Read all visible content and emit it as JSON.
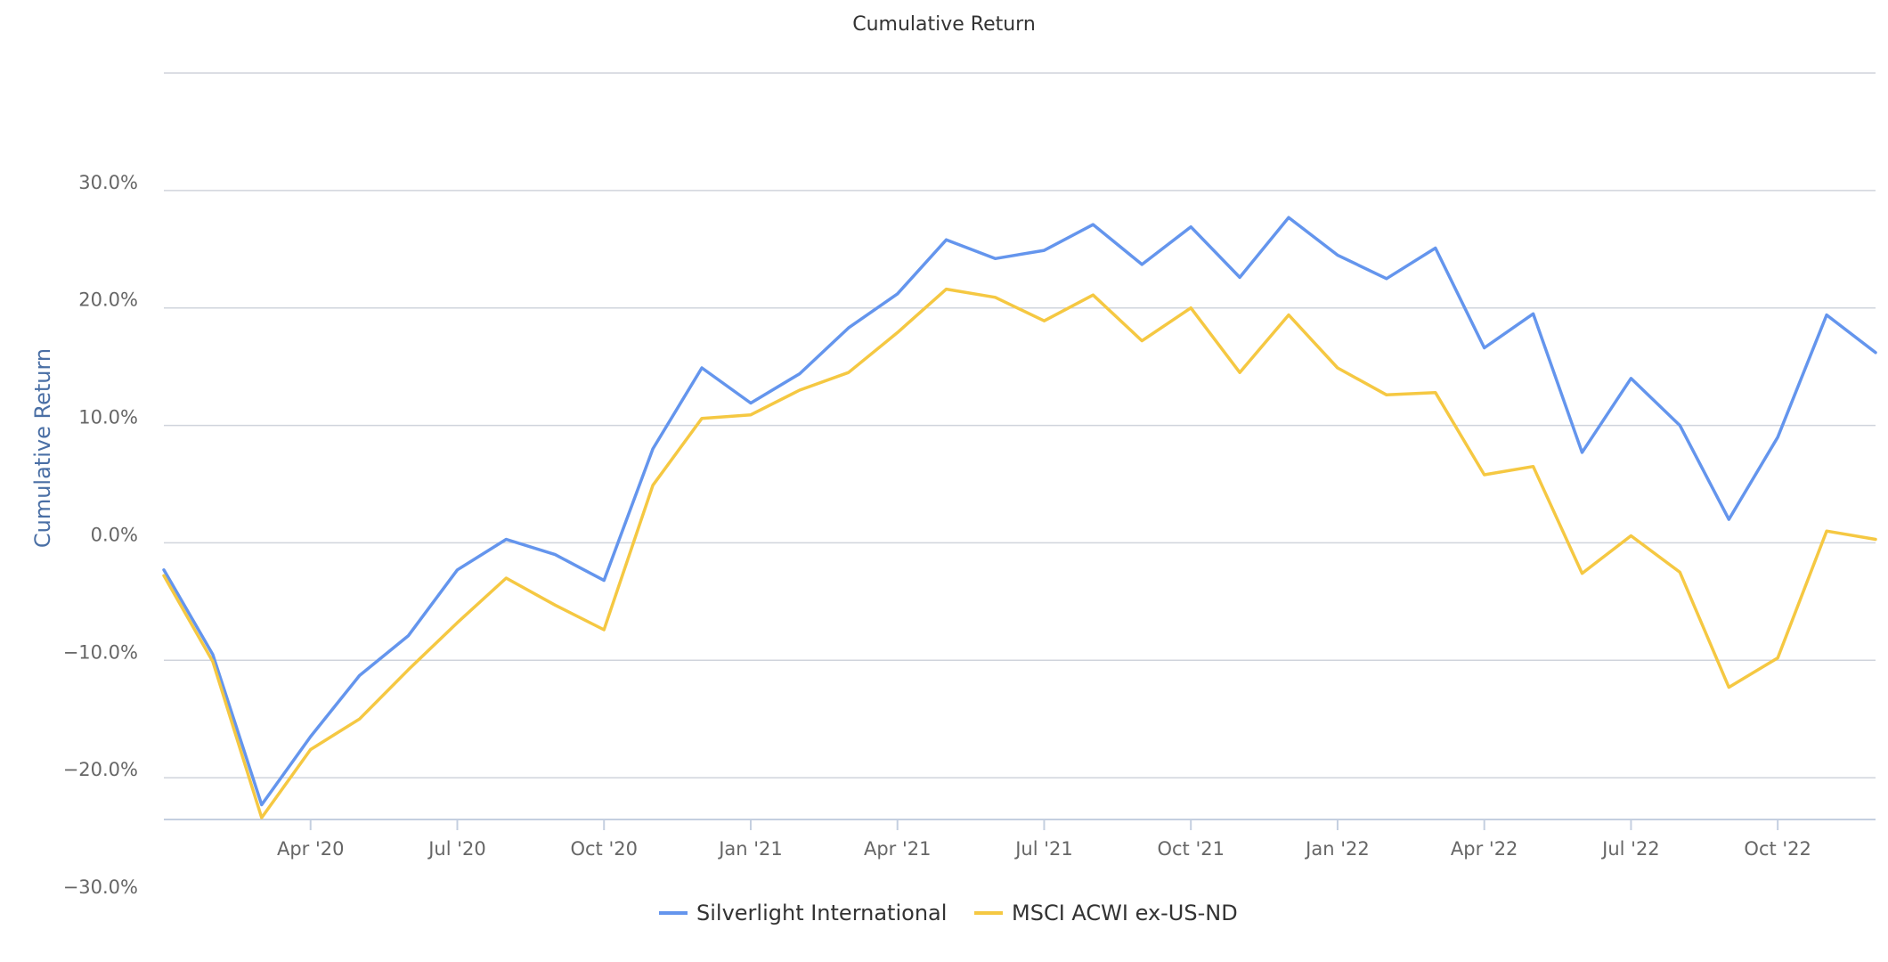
{
  "chart_data": {
    "type": "line",
    "title": "Cumulative Return",
    "ylabel": "Cumulative Return",
    "xlabel": "",
    "ylim": [
      -30,
      40
    ],
    "y_ticks": [
      {
        "value": -30,
        "label": "−30.0%"
      },
      {
        "value": -20,
        "label": "−20.0%"
      },
      {
        "value": -10,
        "label": "−10.0%"
      },
      {
        "value": 0,
        "label": "0.0%"
      },
      {
        "value": 10,
        "label": "10.0%"
      },
      {
        "value": 20,
        "label": "20.0%"
      },
      {
        "value": 30,
        "label": "30.0%"
      }
    ],
    "x": [
      "Jan '20",
      "Feb '20",
      "Mar '20",
      "Apr '20",
      "May '20",
      "Jun '20",
      "Jul '20",
      "Aug '20",
      "Sep '20",
      "Oct '20",
      "Nov '20",
      "Dec '20",
      "Jan '21",
      "Feb '21",
      "Mar '21",
      "Apr '21",
      "May '21",
      "Jun '21",
      "Jul '21",
      "Aug '21",
      "Sep '21",
      "Oct '21",
      "Nov '21",
      "Dec '21",
      "Jan '22",
      "Feb '22",
      "Mar '22",
      "Apr '22",
      "May '22",
      "Jun '22",
      "Jul '22",
      "Aug '22",
      "Sep '22",
      "Oct '22",
      "Nov '22",
      "Dec '22"
    ],
    "x_ticks": [
      {
        "value": "Apr '20",
        "label": "Apr '20"
      },
      {
        "value": "Jul '20",
        "label": "Jul '20"
      },
      {
        "value": "Oct '20",
        "label": "Oct '20"
      },
      {
        "value": "Jan '21",
        "label": "Jan '21"
      },
      {
        "value": "Apr '21",
        "label": "Apr '21"
      },
      {
        "value": "Jul '21",
        "label": "Jul '21"
      },
      {
        "value": "Oct '21",
        "label": "Oct '21"
      },
      {
        "value": "Jan '22",
        "label": "Jan '22"
      },
      {
        "value": "Apr '22",
        "label": "Apr '22"
      },
      {
        "value": "Jul '22",
        "label": "Jul '22"
      },
      {
        "value": "Oct '22",
        "label": "Oct '22"
      }
    ],
    "series": [
      {
        "name": "Silverlight International",
        "color": "#6495ed",
        "values": [
          -2.3,
          -9.5,
          -22.3,
          -16.5,
          -11.3,
          -7.9,
          -2.3,
          0.3,
          -1.0,
          -3.2,
          8.0,
          14.9,
          11.9,
          14.4,
          18.3,
          21.2,
          25.8,
          24.2,
          24.9,
          27.1,
          23.7,
          26.9,
          22.6,
          27.7,
          24.5,
          22.5,
          25.1,
          16.6,
          19.5,
          7.7,
          14.0,
          10.0,
          2.0,
          9.0,
          19.4,
          16.2
        ]
      },
      {
        "name": "MSCI ACWI ex-US-ND",
        "color": "#f5c842",
        "values": [
          -2.8,
          -10.1,
          -23.4,
          -17.6,
          -15.0,
          -10.8,
          -6.8,
          -3.0,
          -5.3,
          -7.4,
          4.9,
          10.6,
          10.9,
          13.0,
          14.5,
          17.9,
          21.6,
          20.9,
          18.9,
          21.1,
          17.2,
          20.0,
          14.5,
          19.4,
          14.9,
          12.6,
          12.8,
          5.8,
          6.5,
          -2.6,
          0.6,
          -2.5,
          -12.3,
          -9.8,
          1.0,
          0.3
        ]
      }
    ],
    "grid": true,
    "legend_position": "bottom-center"
  }
}
